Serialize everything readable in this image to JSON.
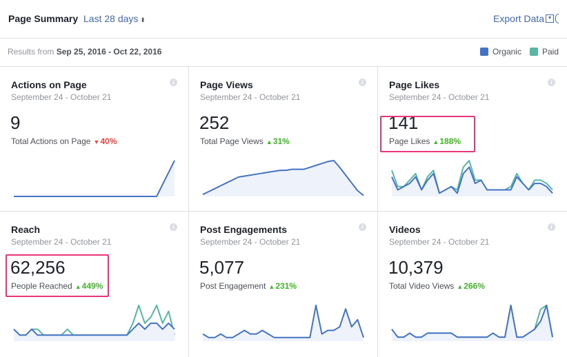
{
  "header": {
    "title": "Page Summary",
    "range": "Last 28 days",
    "export": "Export Data"
  },
  "subbar": {
    "results_prefix": "Results from ",
    "results_range": "Sep 25, 2016 - Oct 22, 2016"
  },
  "legend": [
    {
      "label": "Organic",
      "color": "#4472c4"
    },
    {
      "label": "Paid",
      "color": "#57b6a4"
    }
  ],
  "cards": [
    {
      "title": "Actions on Page",
      "date": "September 24 - October 21",
      "value": "9",
      "label": "Total Actions on Page",
      "change": "40%",
      "direction": "down",
      "organic": [
        0,
        0,
        0,
        0,
        0,
        0,
        0,
        0,
        0,
        0,
        0,
        0,
        0,
        0,
        0,
        0,
        0,
        0,
        0,
        0,
        0,
        0,
        0,
        0,
        0,
        3,
        6,
        9
      ],
      "paid": null,
      "highlight": false
    },
    {
      "title": "Page Views",
      "date": "September 24 - October 21",
      "value": "252",
      "label": "Total Page Views",
      "change": "31%",
      "direction": "up",
      "organic": [
        2,
        5,
        8,
        11,
        14,
        17,
        20,
        21,
        22,
        23,
        24,
        25,
        26,
        27,
        27,
        28,
        28,
        28,
        30,
        32,
        34,
        36,
        37,
        30,
        22,
        14,
        6,
        1
      ],
      "paid": null,
      "highlight": false
    },
    {
      "title": "Page Likes",
      "date": "September 24 - October 21",
      "value": "141",
      "label": "Page Likes",
      "change": "188%",
      "direction": "up",
      "organic": [
        6,
        2,
        3,
        4,
        6,
        2,
        5,
        7,
        1,
        2,
        3,
        1,
        7,
        9,
        4,
        5,
        2,
        2,
        2,
        2,
        2,
        6,
        4,
        2,
        4,
        4,
        3,
        1
      ],
      "paid": [
        8,
        3,
        3,
        5,
        7,
        2,
        6,
        8,
        1,
        2,
        3,
        2,
        9,
        11,
        5,
        5,
        2,
        2,
        2,
        2,
        3,
        7,
        4,
        2,
        5,
        5,
        4,
        2
      ],
      "highlight": true
    },
    {
      "title": "Reach",
      "date": "September 24 - October 21",
      "value": "62,256",
      "label": "People Reached",
      "change": "449%",
      "direction": "up",
      "organic": [
        2,
        1,
        1,
        2,
        1,
        1,
        1,
        1,
        1,
        1,
        1,
        1,
        1,
        1,
        1,
        1,
        1,
        1,
        1,
        1,
        2,
        3,
        2,
        3,
        3,
        2,
        3,
        2
      ],
      "paid": [
        2,
        1,
        1,
        2,
        2,
        1,
        1,
        1,
        1,
        2,
        1,
        1,
        1,
        1,
        1,
        1,
        1,
        1,
        1,
        1,
        3,
        6,
        3,
        4,
        6,
        3,
        5,
        1
      ],
      "highlight": true
    },
    {
      "title": "Post Engagements",
      "date": "September 24 - October 21",
      "value": "5,077",
      "label": "Post Engagement",
      "change": "231%",
      "direction": "up",
      "organic": [
        2,
        1,
        1,
        2,
        1,
        1,
        2,
        3,
        2,
        2,
        3,
        2,
        1,
        1,
        1,
        1,
        1,
        1,
        1,
        10,
        2,
        3,
        3,
        4,
        9,
        4,
        6,
        1
      ],
      "paid": null,
      "highlight": false
    },
    {
      "title": "Videos",
      "date": "September 24 - October 21",
      "value": "10,379",
      "label": "Total Video Views",
      "change": "266%",
      "direction": "up",
      "organic": [
        3,
        1,
        1,
        2,
        1,
        1,
        2,
        2,
        2,
        2,
        2,
        1,
        1,
        1,
        1,
        1,
        1,
        2,
        1,
        1,
        9,
        1,
        1,
        2,
        3,
        5,
        9,
        1
      ],
      "paid": [
        3,
        1,
        1,
        2,
        1,
        1,
        2,
        2,
        2,
        2,
        2,
        1,
        1,
        1,
        1,
        1,
        1,
        2,
        1,
        1,
        9,
        1,
        1,
        2,
        3,
        8,
        9,
        1
      ],
      "highlight": false
    }
  ]
}
